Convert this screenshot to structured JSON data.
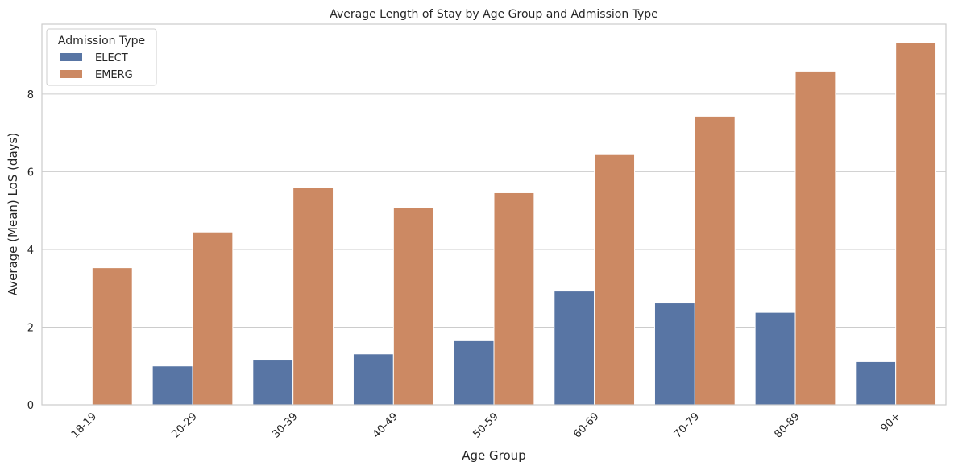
{
  "chart_data": {
    "type": "bar",
    "title": "Average Length of Stay by Age Group and Admission Type",
    "xlabel": "Age Group",
    "ylabel": "Average (Mean) LoS (days)",
    "categories": [
      "18-19",
      "20-29",
      "30-39",
      "40-49",
      "50-59",
      "60-69",
      "70-79",
      "80-89",
      "90+"
    ],
    "series": [
      {
        "name": "ELECT",
        "color": "#5875a4",
        "values": [
          0,
          1.0,
          1.17,
          1.31,
          1.65,
          2.93,
          2.62,
          2.38,
          1.11
        ]
      },
      {
        "name": "EMERG",
        "color": "#cc8963",
        "values": [
          3.53,
          4.45,
          5.59,
          5.08,
          5.46,
          6.46,
          7.43,
          8.59,
          9.33
        ]
      }
    ],
    "ylim": [
      0,
      9.8
    ],
    "yticks": [
      0,
      2,
      4,
      6,
      8
    ],
    "grid": true,
    "legend": {
      "title": "Admission Type",
      "position": "top-left"
    }
  }
}
